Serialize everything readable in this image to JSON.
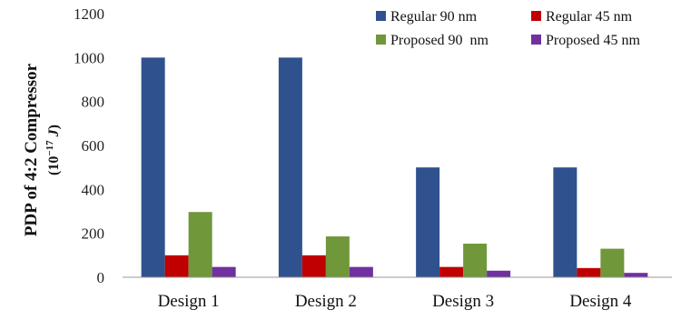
{
  "chart_data": {
    "type": "bar",
    "categories": [
      "Design 1",
      "Design 2",
      "Design 3",
      "Design 4"
    ],
    "series": [
      {
        "name": "Regular 90 nm",
        "values": [
          1000,
          1000,
          500,
          500
        ],
        "color": "#2F528F"
      },
      {
        "name": "Regular 45 nm",
        "values": [
          100,
          100,
          47,
          42
        ],
        "color": "#C00000"
      },
      {
        "name": "Proposed 90  nm",
        "values": [
          297,
          186,
          153,
          130
        ],
        "color": "#70973A"
      },
      {
        "name": "Proposed 45 nm",
        "values": [
          47,
          47,
          30,
          20
        ],
        "color": "#7030A0"
      }
    ],
    "ylabel_line1": "PDP of 4:2 Compressor",
    "ylabel_line2_prefix": "(10",
    "ylabel_line2_exponent": "−17",
    "ylabel_line2_unit": "J",
    "ylabel_line2_suffix": ")",
    "ylim": [
      0,
      1200
    ],
    "yticks": [
      0,
      200,
      400,
      600,
      800,
      1000,
      1200
    ],
    "grid": false,
    "legend": "top-right, 2 columns"
  }
}
